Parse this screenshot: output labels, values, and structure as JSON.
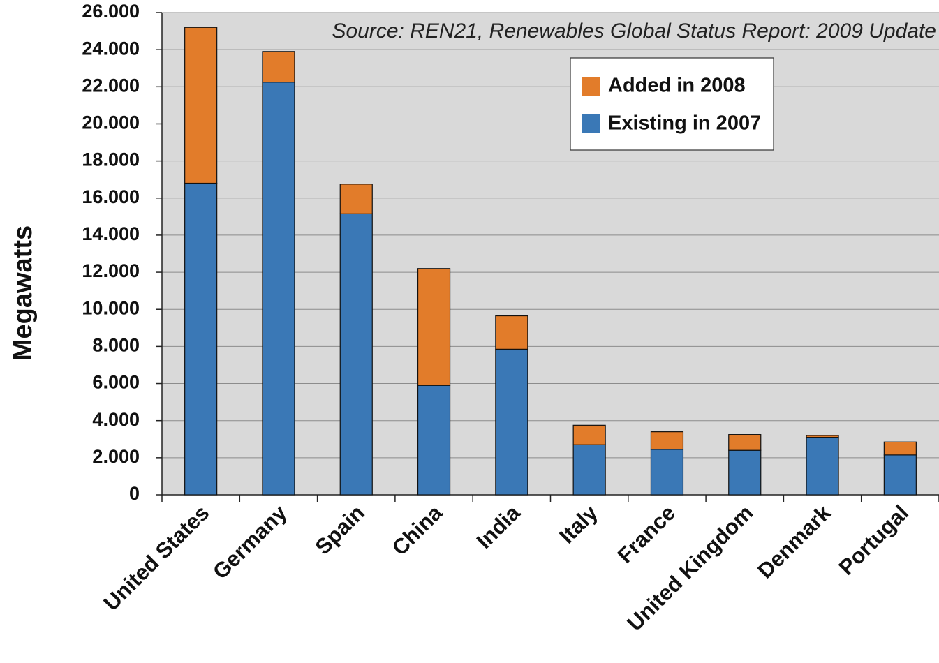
{
  "chart_data": {
    "type": "bar",
    "stacked": true,
    "annotation": "Source: REN21, Renewables Global Status Report: 2009 Update",
    "y_label": "Megawatts",
    "categories": [
      "United States",
      "Germany",
      "Spain",
      "China",
      "India",
      "Italy",
      "France",
      "United Kingdom",
      "Denmark",
      "Portugal"
    ],
    "series": [
      {
        "name": "Existing in 2007",
        "color": "#3a78b6",
        "values": [
          16800,
          22250,
          15150,
          5900,
          7850,
          2700,
          2450,
          2400,
          3100,
          2150
        ]
      },
      {
        "name": "Added in 2008",
        "color": "#e27c2a",
        "values": [
          8400,
          1650,
          1600,
          6300,
          1800,
          1050,
          950,
          850,
          100,
          700
        ]
      }
    ],
    "ylim": [
      0,
      26000
    ],
    "yticks": [
      0,
      {
        "value": 2000,
        "label": "2.000"
      },
      {
        "value": 4000,
        "label": "4.000"
      },
      {
        "value": 6000,
        "label": "6.000"
      },
      {
        "value": 8000,
        "label": "8.000"
      },
      {
        "value": 10000,
        "label": "10.000"
      },
      {
        "value": 12000,
        "label": "12.000"
      },
      {
        "value": 14000,
        "label": "14.000"
      },
      {
        "value": 16000,
        "label": "16.000"
      },
      {
        "value": 18000,
        "label": "18.000"
      },
      {
        "value": 20000,
        "label": "20.000"
      },
      {
        "value": 22000,
        "label": "22.000"
      },
      {
        "value": 24000,
        "label": "24.000"
      },
      {
        "value": 26000,
        "label": "26.000"
      }
    ],
    "grid": true,
    "legend": "upper right"
  }
}
